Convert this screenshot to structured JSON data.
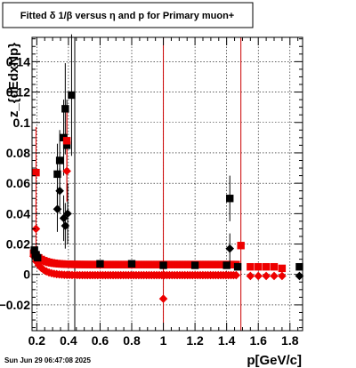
{
  "chart_data": {
    "type": "scatter",
    "title": "Fitted δ 1/β versus η and p for Primary muon+",
    "xlabel": "p[GeV/c]",
    "ylabel": "z_{dEdxNp}",
    "footer": "Sun Jun 29 06:47:08 2025",
    "xlim": [
      0.17,
      1.88
    ],
    "ylim": [
      -0.037,
      0.156
    ],
    "grid": true,
    "x_ticks": [
      0.2,
      0.4,
      0.6,
      0.8,
      1,
      1.2,
      1.4,
      1.6,
      1.8
    ],
    "x_tick_labels": [
      "0.2",
      "0.4",
      "0.6",
      "0.8",
      "1",
      "1.2",
      "1.4",
      "1.6",
      "1.8"
    ],
    "y_ticks": [
      -0.02,
      0,
      0.02,
      0.04,
      0.06,
      0.08,
      0.1,
      0.12,
      0.14
    ],
    "y_tick_labels": [
      "−0.02",
      "0",
      "0.02",
      "0.04",
      "0.06",
      "0.08",
      "0.1",
      "0.12",
      "0.14"
    ],
    "vertical_lines": [
      {
        "x": 0.44,
        "color": "#000000"
      },
      {
        "x": 1.0,
        "color": "#cc0000"
      },
      {
        "x": 1.49,
        "color": "#cc0000"
      }
    ],
    "series": [
      {
        "marker": "square",
        "color": "#000000",
        "points": [
          {
            "x": 0.185,
            "y": 0.016,
            "err": 0.002
          },
          {
            "x": 0.195,
            "y": 0.013,
            "err": 0.002
          },
          {
            "x": 0.205,
            "y": 0.011,
            "err": 0.002
          },
          {
            "x": 0.33,
            "y": 0.066,
            "err": 0.02
          },
          {
            "x": 0.345,
            "y": 0.075,
            "err": 0.02
          },
          {
            "x": 0.37,
            "y": 0.09,
            "err": 0.025
          },
          {
            "x": 0.38,
            "y": 0.109,
            "err": 0.03
          },
          {
            "x": 0.39,
            "y": 0.085,
            "err": 0.03
          },
          {
            "x": 0.42,
            "y": 0.118,
            "err": 0.04
          },
          {
            "x": 0.6,
            "y": 0.007
          },
          {
            "x": 0.8,
            "y": 0.007
          },
          {
            "x": 1.0,
            "y": 0.006
          },
          {
            "x": 1.2,
            "y": 0.006
          },
          {
            "x": 1.4,
            "y": 0.006
          },
          {
            "x": 1.42,
            "y": 0.05,
            "err": 0.015
          },
          {
            "x": 1.47,
            "y": 0.005
          },
          {
            "x": 1.86,
            "y": 0.005
          }
        ]
      },
      {
        "marker": "diamond",
        "color": "#000000",
        "points": [
          {
            "x": 0.33,
            "y": 0.043,
            "err": 0.015
          },
          {
            "x": 0.345,
            "y": 0.055,
            "err": 0.015
          },
          {
            "x": 0.37,
            "y": 0.037,
            "err": 0.015
          },
          {
            "x": 0.38,
            "y": 0.032,
            "err": 0.015
          },
          {
            "x": 0.395,
            "y": 0.04,
            "err": 0.02
          },
          {
            "x": 1.42,
            "y": 0.017,
            "err": 0.01
          },
          {
            "x": 1.86,
            "y": -0.001
          }
        ]
      },
      {
        "marker": "square",
        "color": "#ee0000",
        "points": [
          {
            "x": 0.195,
            "y": 0.067,
            "err": 0.03
          },
          {
            "x": 0.39,
            "y": 0.088,
            "err": 0.02
          },
          {
            "x": 1.49,
            "y": 0.019
          },
          {
            "x": 1.55,
            "y": 0.005
          },
          {
            "x": 1.6,
            "y": 0.005
          },
          {
            "x": 1.65,
            "y": 0.005
          },
          {
            "x": 1.7,
            "y": 0.005
          },
          {
            "x": 1.75,
            "y": 0.004
          }
        ]
      },
      {
        "marker": "diamond",
        "color": "#ee0000",
        "points": [
          {
            "x": 0.195,
            "y": 0.03,
            "err": 0.02
          },
          {
            "x": 0.39,
            "y": 0.068,
            "err": 0.02
          },
          {
            "x": 1.0,
            "y": -0.016
          },
          {
            "x": 1.55,
            "y": -0.001
          },
          {
            "x": 1.6,
            "y": -0.001
          },
          {
            "x": 1.65,
            "y": -0.001
          },
          {
            "x": 1.7,
            "y": -0.001
          },
          {
            "x": 1.75,
            "y": -0.001
          }
        ]
      }
    ],
    "bands": [
      {
        "marker": "square",
        "color": "#ee0000",
        "x_start": 0.18,
        "x_end": 1.46,
        "count": 80,
        "y_start": 0.014,
        "y_plateau": 0.0065,
        "decay": 0.06
      },
      {
        "marker": "diamond",
        "color": "#ee0000",
        "x_start": 0.18,
        "x_end": 1.46,
        "count": 80,
        "y_start": 0.012,
        "y_plateau": -0.0005,
        "decay": 0.05
      }
    ]
  }
}
